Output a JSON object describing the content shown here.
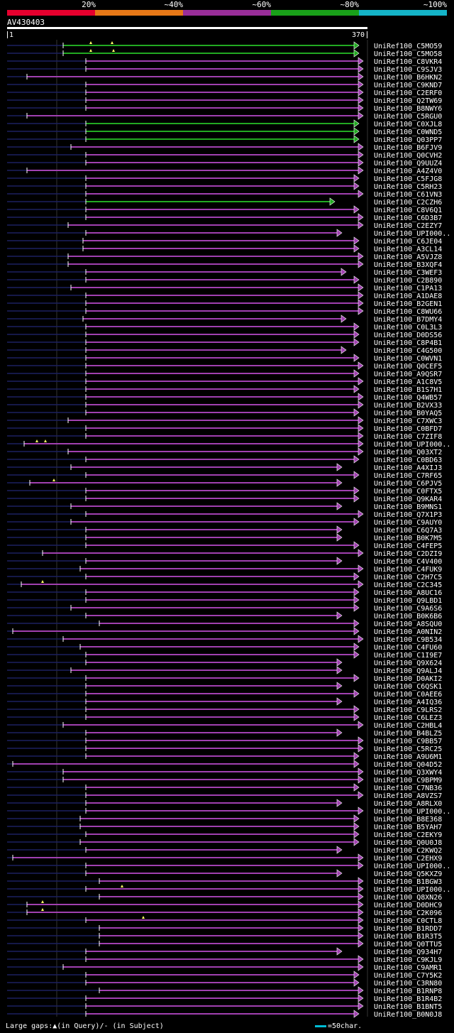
{
  "legend": {
    "labels": [
      "20%",
      "~40%",
      "~60%",
      "~80%",
      "~100%"
    ],
    "colors": [
      "#e6002e",
      "#e67817",
      "#992e99",
      "#19a019",
      "#14b4c8"
    ]
  },
  "query": {
    "name": "AV430403",
    "start": "1",
    "end": "370"
  },
  "colors": {
    "purple": "#a040b0",
    "green": "#22aa22",
    "gap": "#1c2060",
    "grid": "#333333"
  },
  "footer": {
    "gaps_text": "Large gaps:▲(in Query)/- (in Subject)",
    "scale_text": "=50char."
  },
  "hits": [
    {
      "name": "UniRef100_C5MO59",
      "start": 89,
      "end": 506,
      "cov": "green",
      "mark": [
        128,
        158
      ]
    },
    {
      "name": "UniRef100_C5MO58",
      "start": 89,
      "end": 506,
      "cov": "green",
      "mark": [
        128,
        160
      ]
    },
    {
      "name": "UniRef100_C8VKR4",
      "start": 121,
      "end": 512,
      "cov": "purple"
    },
    {
      "name": "UniRef100_C9SJV3",
      "start": 121,
      "end": 512,
      "cov": "purple"
    },
    {
      "name": "UniRef100_B6HKN2",
      "start": 38,
      "end": 512,
      "cov": "purple",
      "gaps": [
        [
          40,
          60
        ]
      ]
    },
    {
      "name": "UniRef100_C9KND7",
      "start": 121,
      "end": 512,
      "cov": "purple"
    },
    {
      "name": "UniRef100_C2ERF0",
      "start": 121,
      "end": 512,
      "cov": "purple"
    },
    {
      "name": "UniRef100_Q2TW69",
      "start": 121,
      "end": 512,
      "cov": "purple"
    },
    {
      "name": "UniRef100_B8NWY6",
      "start": 121,
      "end": 512,
      "cov": "purple"
    },
    {
      "name": "UniRef100_C5RGU0",
      "start": 38,
      "end": 512,
      "cov": "purple",
      "gaps": [
        [
          40,
          60
        ]
      ]
    },
    {
      "name": "UniRef100_C0XJL8",
      "start": 121,
      "end": 506,
      "cov": "green"
    },
    {
      "name": "UniRef100_C0WND5",
      "start": 121,
      "end": 506,
      "cov": "green"
    },
    {
      "name": "UniRef100_Q03PP7",
      "start": 121,
      "end": 506,
      "cov": "green"
    },
    {
      "name": "UniRef100_B6FJV9",
      "start": 100,
      "end": 512,
      "cov": "purple"
    },
    {
      "name": "UniRef100_Q0CVH2",
      "start": 121,
      "end": 512,
      "cov": "purple"
    },
    {
      "name": "UniRef100_Q9UUZ4",
      "start": 121,
      "end": 512,
      "cov": "purple"
    },
    {
      "name": "UniRef100_A4Z4V0",
      "start": 38,
      "end": 512,
      "cov": "purple",
      "gaps": [
        [
          40,
          60
        ]
      ]
    },
    {
      "name": "UniRef100_C5FJG8",
      "start": 121,
      "end": 506,
      "cov": "purple"
    },
    {
      "name": "UniRef100_C5RH23",
      "start": 121,
      "end": 506,
      "cov": "purple"
    },
    {
      "name": "UniRef100_C61VN3",
      "start": 121,
      "end": 512,
      "cov": "purple"
    },
    {
      "name": "UniRef100_C2CZH6",
      "start": 121,
      "end": 472,
      "cov": "green"
    },
    {
      "name": "UniRef100_C8V6Q1",
      "start": 121,
      "end": 506,
      "cov": "purple"
    },
    {
      "name": "UniRef100_C6D3B7",
      "start": 121,
      "end": 512,
      "cov": "purple"
    },
    {
      "name": "UniRef100_C2EZY7",
      "start": 96,
      "end": 512,
      "cov": "purple"
    },
    {
      "name": "UniRef100_UPI000..",
      "start": 121,
      "end": 482,
      "cov": "purple"
    },
    {
      "name": "UniRef100_C6JE04",
      "start": 117,
      "end": 506,
      "cov": "purple"
    },
    {
      "name": "UniRef100_A3CL14",
      "start": 117,
      "end": 506,
      "cov": "purple"
    },
    {
      "name": "UniRef100_A5VJZ8",
      "start": 96,
      "end": 512,
      "cov": "purple"
    },
    {
      "name": "UniRef100_B3XQF4",
      "start": 96,
      "end": 512,
      "cov": "purple"
    },
    {
      "name": "UniRef100_C3WEF3",
      "start": 121,
      "end": 488,
      "cov": "purple"
    },
    {
      "name": "UniRef100_C2B890",
      "start": 121,
      "end": 506,
      "cov": "purple"
    },
    {
      "name": "UniRef100_C1PA13",
      "start": 100,
      "end": 512,
      "cov": "purple"
    },
    {
      "name": "UniRef100_A1DAE8",
      "start": 121,
      "end": 512,
      "cov": "purple"
    },
    {
      "name": "UniRef100_B2GEN1",
      "start": 121,
      "end": 512,
      "cov": "purple"
    },
    {
      "name": "UniRef100_C8WU66",
      "start": 121,
      "end": 512,
      "cov": "purple"
    },
    {
      "name": "UniRef100_B7DMY4",
      "start": 117,
      "end": 488,
      "cov": "purple"
    },
    {
      "name": "UniRef100_C0L3L3",
      "start": 121,
      "end": 506,
      "cov": "purple"
    },
    {
      "name": "UniRef100_D0DS56",
      "start": 121,
      "end": 506,
      "cov": "purple"
    },
    {
      "name": "UniRef100_C8P4B1",
      "start": 121,
      "end": 506,
      "cov": "purple"
    },
    {
      "name": "UniRef100_C4G500",
      "start": 121,
      "end": 488,
      "cov": "purple"
    },
    {
      "name": "UniRef100_C0WVN1",
      "start": 121,
      "end": 506,
      "cov": "purple"
    },
    {
      "name": "UniRef100_Q0CEF5",
      "start": 121,
      "end": 512,
      "cov": "purple"
    },
    {
      "name": "UniRef100_A9QSR7",
      "start": 121,
      "end": 506,
      "cov": "purple"
    },
    {
      "name": "UniRef100_A1C8V5",
      "start": 121,
      "end": 512,
      "cov": "purple"
    },
    {
      "name": "UniRef100_B1S7H1",
      "start": 121,
      "end": 506,
      "cov": "purple"
    },
    {
      "name": "UniRef100_Q4WB57",
      "start": 121,
      "end": 512,
      "cov": "purple"
    },
    {
      "name": "UniRef100_B2VX33",
      "start": 121,
      "end": 512,
      "cov": "purple"
    },
    {
      "name": "UniRef100_B0YAQ5",
      "start": 121,
      "end": 506,
      "cov": "purple"
    },
    {
      "name": "UniRef100_C7XWC3",
      "start": 96,
      "end": 512,
      "cov": "purple"
    },
    {
      "name": "UniRef100_C0BFD7",
      "start": 121,
      "end": 512,
      "cov": "purple"
    },
    {
      "name": "UniRef100_C7ZIF8",
      "start": 121,
      "end": 512,
      "cov": "purple"
    },
    {
      "name": "UniRef100_UPI000..",
      "start": 34,
      "end": 512,
      "cov": "purple",
      "mark": [
        52,
        64
      ]
    },
    {
      "name": "UniRef100_Q03XT2",
      "start": 96,
      "end": 512,
      "cov": "purple"
    },
    {
      "name": "UniRef100_C0BD63",
      "start": 121,
      "end": 506,
      "cov": "purple"
    },
    {
      "name": "UniRef100_A4XIJ3",
      "start": 100,
      "end": 482,
      "cov": "purple"
    },
    {
      "name": "UniRef100_C7RF65",
      "start": 121,
      "end": 506,
      "cov": "purple"
    },
    {
      "name": "UniRef100_C6PJV5",
      "start": 42,
      "end": 482,
      "cov": "purple",
      "mark": [
        76
      ]
    },
    {
      "name": "UniRef100_C0FTX5",
      "start": 121,
      "end": 506,
      "cov": "purple"
    },
    {
      "name": "UniRef100_Q9KAR4",
      "start": 121,
      "end": 506,
      "cov": "purple"
    },
    {
      "name": "UniRef100_B9MNS1",
      "start": 100,
      "end": 482,
      "cov": "purple"
    },
    {
      "name": "UniRef100_Q7X1P3",
      "start": 121,
      "end": 512,
      "cov": "purple"
    },
    {
      "name": "UniRef100_C9AUY0",
      "start": 100,
      "end": 506,
      "cov": "purple"
    },
    {
      "name": "UniRef100_C6Q7A3",
      "start": 121,
      "end": 482,
      "cov": "purple"
    },
    {
      "name": "UniRef100_B0K7M5",
      "start": 121,
      "end": 482,
      "cov": "purple"
    },
    {
      "name": "UniRef100_C4FEP5",
      "start": 121,
      "end": 506,
      "cov": "purple"
    },
    {
      "name": "UniRef100_C2DZI9",
      "start": 60,
      "end": 512,
      "cov": "purple"
    },
    {
      "name": "UniRef100_C4V400",
      "start": 121,
      "end": 482,
      "cov": "purple"
    },
    {
      "name": "UniRef100_C4FUK9",
      "start": 113,
      "end": 512,
      "cov": "purple"
    },
    {
      "name": "UniRef100_C2H7C5",
      "start": 121,
      "end": 506,
      "cov": "purple"
    },
    {
      "name": "UniRef100_C2C345",
      "start": 30,
      "end": 512,
      "cov": "purple",
      "mark": [
        60
      ]
    },
    {
      "name": "UniRef100_A8UC16",
      "start": 121,
      "end": 506,
      "cov": "purple"
    },
    {
      "name": "UniRef100_Q9LBD1",
      "start": 121,
      "end": 506,
      "cov": "purple"
    },
    {
      "name": "UniRef100_C9A6S6",
      "start": 100,
      "end": 506,
      "cov": "purple"
    },
    {
      "name": "UniRef100_B0K6B6",
      "start": 121,
      "end": 482,
      "cov": "purple"
    },
    {
      "name": "UniRef100_A8SQU0",
      "start": 140,
      "end": 506,
      "cov": "purple"
    },
    {
      "name": "UniRef100_A0NIN2",
      "start": 18,
      "end": 506,
      "cov": "purple",
      "gaps": [
        [
          20,
          40
        ]
      ]
    },
    {
      "name": "UniRef100_C9B534",
      "start": 89,
      "end": 512,
      "cov": "purple"
    },
    {
      "name": "UniRef100_C4FU60",
      "start": 113,
      "end": 506,
      "cov": "purple"
    },
    {
      "name": "UniRef100_C1I9E7",
      "start": 121,
      "end": 506,
      "cov": "purple"
    },
    {
      "name": "UniRef100_Q9X624",
      "start": 121,
      "end": 482,
      "cov": "purple"
    },
    {
      "name": "UniRef100_Q9ALJ4",
      "start": 100,
      "end": 482,
      "cov": "purple"
    },
    {
      "name": "UniRef100_D0AKI2",
      "start": 121,
      "end": 506,
      "cov": "purple"
    },
    {
      "name": "UniRef100_C6QSK1",
      "start": 121,
      "end": 482,
      "cov": "purple"
    },
    {
      "name": "UniRef100_C0AEE6",
      "start": 121,
      "end": 506,
      "cov": "purple"
    },
    {
      "name": "UniRef100_A4IQ36",
      "start": 121,
      "end": 482,
      "cov": "purple"
    },
    {
      "name": "UniRef100_C9LRS2",
      "start": 121,
      "end": 506,
      "cov": "purple"
    },
    {
      "name": "UniRef100_C6LEZ3",
      "start": 121,
      "end": 506,
      "cov": "purple"
    },
    {
      "name": "UniRef100_C2HBL4",
      "start": 89,
      "end": 512,
      "cov": "purple"
    },
    {
      "name": "UniRef100_B4BLZ5",
      "start": 121,
      "end": 482,
      "cov": "purple"
    },
    {
      "name": "UniRef100_C9BB57",
      "start": 121,
      "end": 512,
      "cov": "purple"
    },
    {
      "name": "UniRef100_C5RC25",
      "start": 121,
      "end": 512,
      "cov": "purple"
    },
    {
      "name": "UniRef100_A9U6M1",
      "start": 121,
      "end": 506,
      "cov": "purple"
    },
    {
      "name": "UniRef100_Q04D52",
      "start": 18,
      "end": 506,
      "cov": "purple",
      "gaps": [
        [
          20,
          40
        ]
      ]
    },
    {
      "name": "UniRef100_Q3XWY4",
      "start": 89,
      "end": 512,
      "cov": "purple"
    },
    {
      "name": "UniRef100_C9BPM9",
      "start": 89,
      "end": 512,
      "cov": "purple"
    },
    {
      "name": "UniRef100_C7NB36",
      "start": 121,
      "end": 506,
      "cov": "purple"
    },
    {
      "name": "UniRef100_A8VZS7",
      "start": 121,
      "end": 512,
      "cov": "purple"
    },
    {
      "name": "UniRef100_A8RLX0",
      "start": 121,
      "end": 482,
      "cov": "purple"
    },
    {
      "name": "UniRef100_UPI000..",
      "start": 121,
      "end": 512,
      "cov": "purple"
    },
    {
      "name": "UniRef100_B8E368",
      "start": 113,
      "end": 506,
      "cov": "purple"
    },
    {
      "name": "UniRef100_B5YAH7",
      "start": 113,
      "end": 506,
      "cov": "purple"
    },
    {
      "name": "UniRef100_C2EKY9",
      "start": 121,
      "end": 506,
      "cov": "purple"
    },
    {
      "name": "UniRef100_Q0U0J8",
      "start": 113,
      "end": 506,
      "cov": "purple"
    },
    {
      "name": "UniRef100_C2KWQ2",
      "start": 121,
      "end": 482,
      "cov": "purple"
    },
    {
      "name": "UniRef100_C2EHX9",
      "start": 18,
      "end": 512,
      "cov": "purple",
      "gaps": [
        [
          20,
          40
        ]
      ]
    },
    {
      "name": "UniRef100_UPI000..",
      "start": 121,
      "end": 512,
      "cov": "purple"
    },
    {
      "name": "UniRef100_Q5KXZ9",
      "start": 121,
      "end": 482,
      "cov": "purple"
    },
    {
      "name": "UniRef100_B1BGW3",
      "start": 140,
      "end": 512,
      "cov": "purple"
    },
    {
      "name": "UniRef100_UPI000..",
      "start": 121,
      "end": 512,
      "cov": "purple",
      "mark": [
        172
      ]
    },
    {
      "name": "UniRef100_Q8XN26",
      "start": 140,
      "end": 512,
      "cov": "purple"
    },
    {
      "name": "UniRef100_D0DHC9",
      "start": 38,
      "end": 512,
      "cov": "purple",
      "mark": [
        60
      ]
    },
    {
      "name": "UniRef100_C2K096",
      "start": 38,
      "end": 512,
      "cov": "purple",
      "mark": [
        60
      ]
    },
    {
      "name": "UniRef100_C0CTL8",
      "start": 121,
      "end": 512,
      "cov": "purple",
      "mark": [
        202
      ]
    },
    {
      "name": "UniRef100_B1RDD7",
      "start": 140,
      "end": 512,
      "cov": "purple"
    },
    {
      "name": "UniRef100_B1R3T5",
      "start": 140,
      "end": 512,
      "cov": "purple"
    },
    {
      "name": "UniRef100_Q0TTU5",
      "start": 140,
      "end": 512,
      "cov": "purple"
    },
    {
      "name": "UniRef100_Q934H7",
      "start": 121,
      "end": 482,
      "cov": "purple"
    },
    {
      "name": "UniRef100_C9KJL9",
      "start": 121,
      "end": 512,
      "cov": "purple"
    },
    {
      "name": "UniRef100_C9AMR1",
      "start": 89,
      "end": 512,
      "cov": "purple"
    },
    {
      "name": "UniRef100_C7Y5K2",
      "start": 121,
      "end": 506,
      "cov": "purple"
    },
    {
      "name": "UniRef100_C3RN80",
      "start": 121,
      "end": 506,
      "cov": "purple"
    },
    {
      "name": "UniRef100_B1RNP8",
      "start": 140,
      "end": 512,
      "cov": "purple"
    },
    {
      "name": "UniRef100_B1R4B2",
      "start": 121,
      "end": 512,
      "cov": "purple"
    },
    {
      "name": "UniRef100_B1BNT5",
      "start": 121,
      "end": 512,
      "cov": "purple"
    },
    {
      "name": "UniRef100_B0N0J8",
      "start": 121,
      "end": 506,
      "cov": "purple"
    }
  ]
}
